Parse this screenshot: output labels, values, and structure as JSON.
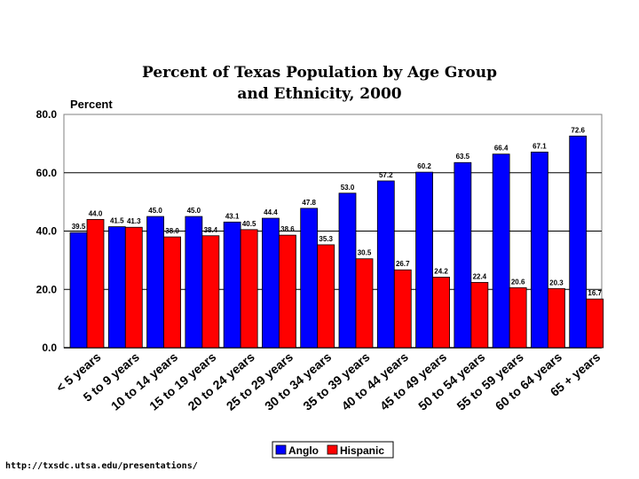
{
  "chart_data": {
    "type": "bar",
    "title_line1": "Percent of Texas Population by Age Group",
    "title_line2": "and Ethnicity, 2000",
    "ylabel": "Percent",
    "xlabel": "",
    "ylim": [
      0,
      80
    ],
    "y_ticks": [
      "0.0",
      "20.0",
      "40.0",
      "60.0",
      "80.0"
    ],
    "y_tick_values": [
      0,
      20,
      40,
      60,
      80
    ],
    "grid": true,
    "legend_position": "bottom",
    "categories": [
      "< 5 years",
      "5 to 9 years",
      "10 to 14 years",
      "15 to 19 years",
      "20 to 24 years",
      "25 to 29 years",
      "30 to 34 years",
      "35 to 39 years",
      "40 to 44 years",
      "45 to 49 years",
      "50 to 54 years",
      "55 to 59 years",
      "60 to 64 years",
      "65 + years"
    ],
    "series": [
      {
        "name": "Anglo",
        "color": "#0000ff",
        "values": [
          39.5,
          41.5,
          45.0,
          45.0,
          43.1,
          44.4,
          47.8,
          53.0,
          57.2,
          60.2,
          63.5,
          66.4,
          67.1,
          72.6
        ],
        "labels": [
          "39.5",
          "41.5",
          "45.0",
          "45.0",
          "43.1",
          "44.4",
          "47.8",
          "53.0",
          "57.2",
          "60.2",
          "63.5",
          "66.4",
          "67.1",
          "72.6"
        ]
      },
      {
        "name": "Hispanic",
        "color": "#ff0000",
        "values": [
          44.0,
          41.3,
          38.0,
          38.4,
          40.5,
          38.6,
          35.3,
          30.5,
          26.7,
          24.2,
          22.4,
          20.6,
          20.3,
          16.7
        ],
        "labels": [
          "44.0",
          "41.3",
          "38.0",
          "38.4",
          "40.5",
          "38.6",
          "35.3",
          "30.5",
          "26.7",
          "24.2",
          "22.4",
          "20.6",
          "20.3",
          "16.7"
        ]
      }
    ]
  },
  "source_url": "http://txsdc.utsa.edu/presentations/"
}
